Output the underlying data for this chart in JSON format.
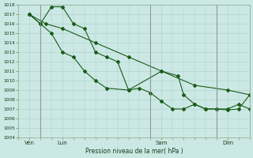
{
  "xlabel": "Pression niveau de la mer( hPa )",
  "bg_color": "#cce8e4",
  "grid_color": "#aacfcb",
  "line_color": "#1a5c1a",
  "ylim": [
    1004,
    1018
  ],
  "xlim": [
    0,
    168
  ],
  "yticks": [
    1004,
    1005,
    1006,
    1007,
    1008,
    1009,
    1010,
    1011,
    1012,
    1013,
    1014,
    1015,
    1016,
    1017,
    1018
  ],
  "xtick_labels": [
    "Ven",
    "Lun",
    "Sam",
    "Dim"
  ],
  "xtick_positions": [
    8,
    32,
    104,
    152
  ],
  "vline_positions": [
    16,
    96,
    144
  ],
  "series1_x": [
    8,
    20,
    32,
    56,
    80,
    104,
    128,
    152,
    168
  ],
  "series1_y": [
    1017,
    1016,
    1015.5,
    1014,
    1012.5,
    1011,
    1009.5,
    1009,
    1008.5
  ],
  "series2_x": [
    8,
    16,
    24,
    32,
    40,
    48,
    56,
    64,
    72,
    80,
    104,
    116,
    120,
    128,
    136,
    144,
    152,
    160,
    168
  ],
  "series2_y": [
    1017,
    1016,
    1017.8,
    1017.8,
    1016,
    1015.5,
    1013,
    1012.5,
    1012,
    1009,
    1011,
    1010.5,
    1008.5,
    1007.5,
    1007,
    1007,
    1007,
    1007.5,
    1007
  ],
  "series3_x": [
    8,
    16,
    24,
    32,
    40,
    48,
    56,
    64,
    80,
    88,
    96,
    104,
    112,
    120,
    128,
    136,
    144,
    152,
    160,
    168
  ],
  "series3_y": [
    1017,
    1016,
    1015,
    1013,
    1012.5,
    1011,
    1010,
    1009.2,
    1009,
    1009.2,
    1008.7,
    1007.8,
    1007,
    1007,
    1007.5,
    1007,
    1007,
    1006.9,
    1007,
    1008.5
  ]
}
